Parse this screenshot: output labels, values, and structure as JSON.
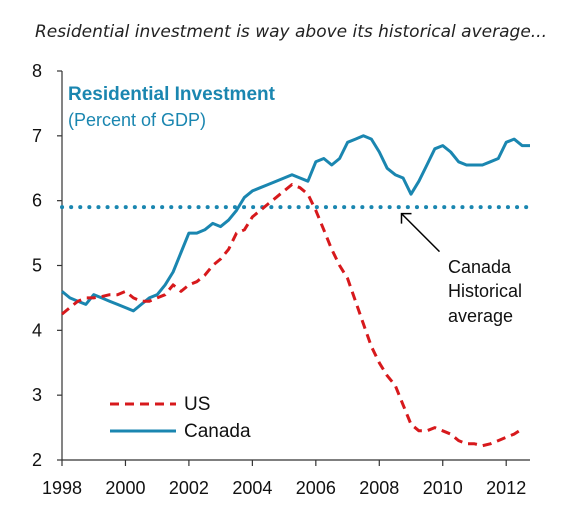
{
  "chart_data": {
    "type": "line",
    "title": "Residential investment is way above its historical average...",
    "inner_title": "Residential Investment",
    "inner_subtitle": "(Percent of GDP)",
    "xlim": [
      1998,
      2012.75
    ],
    "ylim": [
      2,
      8
    ],
    "x_ticks": [
      1998,
      2000,
      2002,
      2004,
      2006,
      2008,
      2010,
      2012
    ],
    "y_ticks": [
      2,
      3,
      4,
      5,
      6,
      7,
      8
    ],
    "grid": false,
    "legend_position": "bottom-left",
    "series": [
      {
        "name": "US",
        "style": "dashed",
        "color": "#d7191c",
        "x": [
          1998.0,
          1998.25,
          1998.5,
          1998.75,
          1999.0,
          1999.25,
          1999.5,
          1999.75,
          2000.0,
          2000.25,
          2000.5,
          2000.75,
          2001.0,
          2001.25,
          2001.5,
          2001.75,
          2002.0,
          2002.25,
          2002.5,
          2002.75,
          2003.0,
          2003.25,
          2003.5,
          2003.75,
          2004.0,
          2004.25,
          2004.5,
          2004.75,
          2005.0,
          2005.25,
          2005.5,
          2005.75,
          2006.0,
          2006.25,
          2006.5,
          2006.75,
          2007.0,
          2007.25,
          2007.5,
          2007.75,
          2008.0,
          2008.25,
          2008.5,
          2008.75,
          2009.0,
          2009.25,
          2009.5,
          2009.75,
          2010.0,
          2010.25,
          2010.5,
          2010.75,
          2011.0,
          2011.25,
          2011.5,
          2011.75,
          2012.0,
          2012.25,
          2012.5
        ],
        "y": [
          4.25,
          4.35,
          4.45,
          4.5,
          4.5,
          4.52,
          4.55,
          4.55,
          4.6,
          4.5,
          4.45,
          4.45,
          4.5,
          4.55,
          4.7,
          4.6,
          4.7,
          4.75,
          4.85,
          5.0,
          5.1,
          5.25,
          5.5,
          5.55,
          5.75,
          5.85,
          5.95,
          6.05,
          6.15,
          6.25,
          6.2,
          6.1,
          5.85,
          5.55,
          5.25,
          5.0,
          4.8,
          4.45,
          4.1,
          3.75,
          3.5,
          3.3,
          3.15,
          2.85,
          2.55,
          2.45,
          2.45,
          2.5,
          2.45,
          2.4,
          2.3,
          2.25,
          2.25,
          2.22,
          2.25,
          2.3,
          2.35,
          2.4,
          2.48
        ]
      },
      {
        "name": "Canada",
        "style": "solid",
        "color": "#1a86b0",
        "x": [
          1998.0,
          1998.25,
          1998.5,
          1998.75,
          1999.0,
          1999.25,
          1999.5,
          1999.75,
          2000.0,
          2000.25,
          2000.5,
          2000.75,
          2001.0,
          2001.25,
          2001.5,
          2001.75,
          2002.0,
          2002.25,
          2002.5,
          2002.75,
          2003.0,
          2003.25,
          2003.5,
          2003.75,
          2004.0,
          2004.25,
          2004.5,
          2004.75,
          2005.0,
          2005.25,
          2005.5,
          2005.75,
          2006.0,
          2006.25,
          2006.5,
          2006.75,
          2007.0,
          2007.25,
          2007.5,
          2007.75,
          2008.0,
          2008.25,
          2008.5,
          2008.75,
          2009.0,
          2009.25,
          2009.5,
          2009.75,
          2010.0,
          2010.25,
          2010.5,
          2010.75,
          2011.0,
          2011.25,
          2011.5,
          2011.75,
          2012.0,
          2012.25,
          2012.5,
          2012.75
        ],
        "y": [
          4.6,
          4.5,
          4.45,
          4.4,
          4.55,
          4.5,
          4.45,
          4.4,
          4.35,
          4.3,
          4.4,
          4.5,
          4.55,
          4.7,
          4.9,
          5.2,
          5.5,
          5.5,
          5.55,
          5.65,
          5.6,
          5.7,
          5.85,
          6.05,
          6.15,
          6.2,
          6.25,
          6.3,
          6.35,
          6.4,
          6.35,
          6.3,
          6.6,
          6.65,
          6.55,
          6.65,
          6.9,
          6.95,
          7.0,
          6.95,
          6.75,
          6.5,
          6.4,
          6.35,
          6.1,
          6.3,
          6.55,
          6.8,
          6.85,
          6.75,
          6.6,
          6.55,
          6.55,
          6.55,
          6.6,
          6.65,
          6.9,
          6.95,
          6.85,
          6.85
        ]
      },
      {
        "name": "Canada Historical average",
        "style": "dotted",
        "color": "#1a86b0",
        "x": [
          1998,
          2012.75
        ],
        "y": [
          5.9,
          5.9
        ]
      }
    ],
    "annotation": {
      "lines": [
        "Canada",
        "Historical",
        "average"
      ],
      "x": 2008.7,
      "y": 5.8
    },
    "colors": {
      "title_color": "#1a86b0",
      "axis_color": "#333333"
    }
  }
}
